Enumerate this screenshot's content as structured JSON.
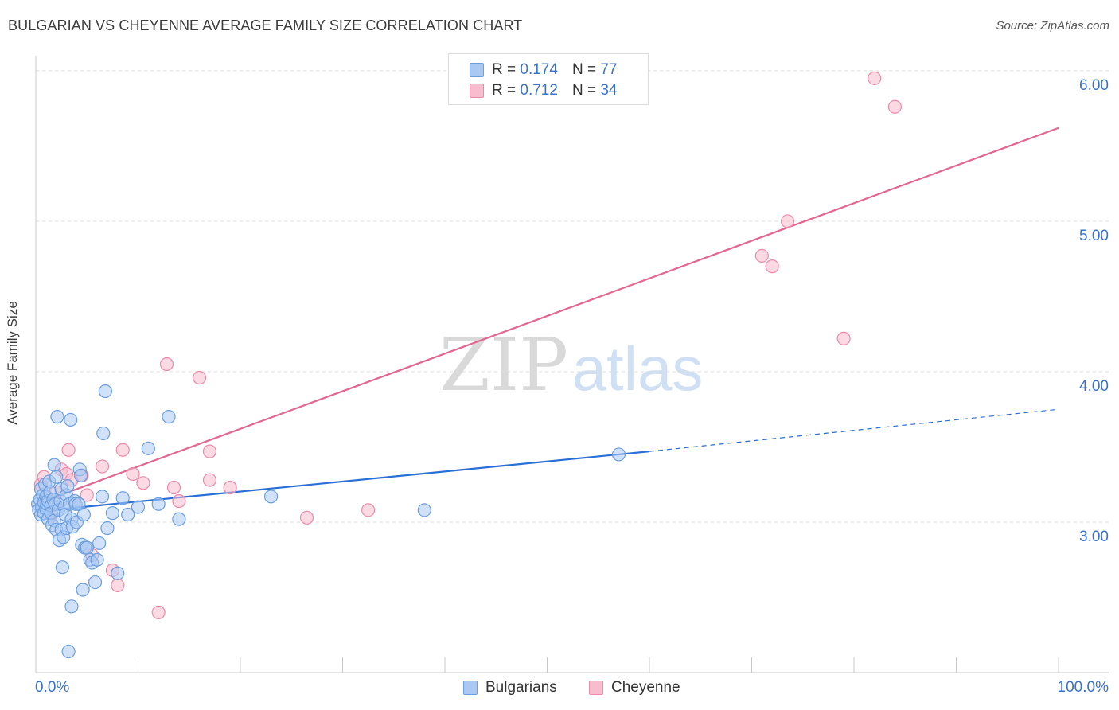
{
  "title": "BULGARIAN VS CHEYENNE AVERAGE FAMILY SIZE CORRELATION CHART",
  "source": "Source: ZipAtlas.com",
  "watermark": {
    "zip": "ZIP",
    "atlas": "atlas"
  },
  "legend": {
    "rows": [
      {
        "r_label": "R = ",
        "r_value": "0.174",
        "n_label": "N = ",
        "n_value": "77"
      },
      {
        "r_label": "R = ",
        "r_value": "0.712",
        "n_label": "N = ",
        "n_value": "34"
      }
    ]
  },
  "bottom_legend": {
    "bulgarians": "Bulgarians",
    "cheyenne": "Cheyenne"
  },
  "colors": {
    "bulgarians_fill": "#a9c8f2",
    "bulgarians_stroke": "#6b9fe0",
    "bulgarians_line": "#2a6fd6",
    "cheyenne_fill": "#f7bccd",
    "cheyenne_stroke": "#ec8aa8",
    "cheyenne_line": "#e3668e",
    "tick_label": "#3a72c9",
    "grid": "#dddddd"
  },
  "chart_data": {
    "type": "scatter",
    "title": "BULGARIAN VS CHEYENNE AVERAGE FAMILY SIZE CORRELATION CHART",
    "xlabel": "",
    "ylabel": "Average Family Size",
    "xlim": [
      0,
      100
    ],
    "ylim": [
      2.0,
      6.1
    ],
    "x_tick_labels": [
      "0.0%",
      "100.0%"
    ],
    "y_ticks": [
      3.0,
      4.0,
      5.0,
      6.0
    ],
    "y_tick_labels": [
      "3.00",
      "4.00",
      "5.00",
      "6.00"
    ],
    "grid": true,
    "legend_position": "top-center",
    "series": [
      {
        "name": "Bulgarians",
        "r": 0.174,
        "n": 77,
        "trend": {
          "x0": 0,
          "y0": 3.07,
          "x1": 60,
          "y1": 3.47,
          "dash_to_x": 100,
          "dash_to_y": 3.75
        },
        "points": [
          [
            0.2,
            3.12
          ],
          [
            0.3,
            3.08
          ],
          [
            0.4,
            3.15
          ],
          [
            0.5,
            3.05
          ],
          [
            0.5,
            3.22
          ],
          [
            0.6,
            3.1
          ],
          [
            0.7,
            3.18
          ],
          [
            0.8,
            3.13
          ],
          [
            0.8,
            3.06
          ],
          [
            0.9,
            3.25
          ],
          [
            1.0,
            3.09
          ],
          [
            1.0,
            3.17
          ],
          [
            1.1,
            3.12
          ],
          [
            1.2,
            3.02
          ],
          [
            1.2,
            3.14
          ],
          [
            1.3,
            3.27
          ],
          [
            1.4,
            3.2
          ],
          [
            1.5,
            3.11
          ],
          [
            1.5,
            3.06
          ],
          [
            1.6,
            2.98
          ],
          [
            1.7,
            3.15
          ],
          [
            1.8,
            3.38
          ],
          [
            1.8,
            3.01
          ],
          [
            1.9,
            3.12
          ],
          [
            2.0,
            2.95
          ],
          [
            2.0,
            3.3
          ],
          [
            2.1,
            3.7
          ],
          [
            2.2,
            3.08
          ],
          [
            2.3,
            2.88
          ],
          [
            2.4,
            3.14
          ],
          [
            2.5,
            2.95
          ],
          [
            2.5,
            3.22
          ],
          [
            2.6,
            2.7
          ],
          [
            2.7,
            2.9
          ],
          [
            2.8,
            3.1
          ],
          [
            2.9,
            3.05
          ],
          [
            3.0,
            2.96
          ],
          [
            3.0,
            3.18
          ],
          [
            3.1,
            3.24
          ],
          [
            3.2,
            2.14
          ],
          [
            3.3,
            3.12
          ],
          [
            3.4,
            3.68
          ],
          [
            3.5,
            2.44
          ],
          [
            3.5,
            3.02
          ],
          [
            3.6,
            2.97
          ],
          [
            3.8,
            3.14
          ],
          [
            3.9,
            3.12
          ],
          [
            4.0,
            3.0
          ],
          [
            4.2,
            3.12
          ],
          [
            4.3,
            3.35
          ],
          [
            4.4,
            3.31
          ],
          [
            4.5,
            2.85
          ],
          [
            4.6,
            2.55
          ],
          [
            4.7,
            3.05
          ],
          [
            4.8,
            2.83
          ],
          [
            5.0,
            2.83
          ],
          [
            5.3,
            2.75
          ],
          [
            5.5,
            2.73
          ],
          [
            5.8,
            2.6
          ],
          [
            6.0,
            2.75
          ],
          [
            6.2,
            2.86
          ],
          [
            6.5,
            3.17
          ],
          [
            6.6,
            3.59
          ],
          [
            6.8,
            3.87
          ],
          [
            7.0,
            2.96
          ],
          [
            7.5,
            3.06
          ],
          [
            8.0,
            2.66
          ],
          [
            8.5,
            3.16
          ],
          [
            9.0,
            3.05
          ],
          [
            10.0,
            3.1
          ],
          [
            11.0,
            3.49
          ],
          [
            12.0,
            3.12
          ],
          [
            13.0,
            3.7
          ],
          [
            14.0,
            3.02
          ],
          [
            23.0,
            3.17
          ],
          [
            38.0,
            3.08
          ],
          [
            57.0,
            3.45
          ]
        ]
      },
      {
        "name": "Cheyenne",
        "r": 0.712,
        "n": 34,
        "trend": {
          "x0": 0,
          "y0": 3.12,
          "x1": 100,
          "y1": 5.62
        },
        "points": [
          [
            0.5,
            3.25
          ],
          [
            0.8,
            3.3
          ],
          [
            1.0,
            3.1
          ],
          [
            1.5,
            3.05
          ],
          [
            2.0,
            3.2
          ],
          [
            2.5,
            3.35
          ],
          [
            3.0,
            3.32
          ],
          [
            3.2,
            3.48
          ],
          [
            3.5,
            3.28
          ],
          [
            4.5,
            3.31
          ],
          [
            5.0,
            3.18
          ],
          [
            5.5,
            2.78
          ],
          [
            6.5,
            3.37
          ],
          [
            7.5,
            2.68
          ],
          [
            8.0,
            2.58
          ],
          [
            8.5,
            3.48
          ],
          [
            9.5,
            3.32
          ],
          [
            10.5,
            3.26
          ],
          [
            12.0,
            2.4
          ],
          [
            12.8,
            4.05
          ],
          [
            13.5,
            3.23
          ],
          [
            14.0,
            3.14
          ],
          [
            16.0,
            3.96
          ],
          [
            17.0,
            3.28
          ],
          [
            19.0,
            3.23
          ],
          [
            17.0,
            3.47
          ],
          [
            26.5,
            3.03
          ],
          [
            32.5,
            3.08
          ],
          [
            71.0,
            4.77
          ],
          [
            72.0,
            4.7
          ],
          [
            73.5,
            5.0
          ],
          [
            79.0,
            4.22
          ],
          [
            82.0,
            5.95
          ],
          [
            84.0,
            5.76
          ]
        ]
      }
    ]
  }
}
